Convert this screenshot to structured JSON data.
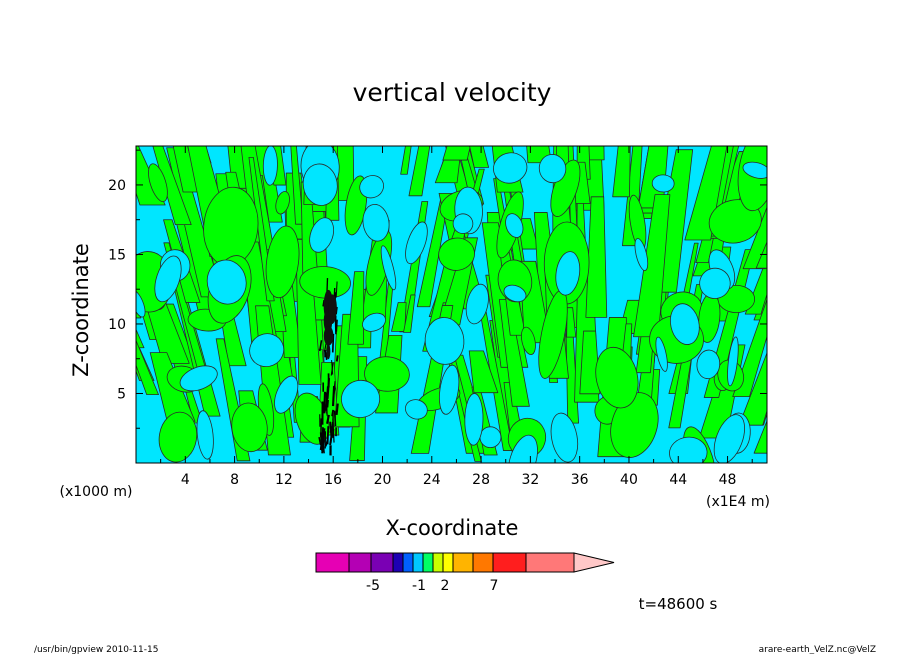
{
  "chart_data": {
    "type": "heatmap",
    "title": "vertical velocity",
    "xlabel": "X-coordinate",
    "ylabel": "Z-coordinate",
    "x_unit": "(x1E4 m)",
    "y_unit": "(x1000 m)",
    "xlim": [
      0,
      51.2
    ],
    "ylim": [
      0,
      22.8
    ],
    "x_ticks": [
      4,
      8,
      12,
      16,
      20,
      24,
      28,
      32,
      36,
      40,
      44,
      48
    ],
    "y_ticks": [
      5,
      10,
      15,
      20
    ],
    "grid": false,
    "colorbar": {
      "levels": [
        "-5",
        "-1",
        "2",
        "7"
      ],
      "colors": [
        "#e600b4",
        "#b400b4",
        "#7a00b4",
        "#1e00b4",
        "#0060ff",
        "#00c8ff",
        "#00ff64",
        "#c8ff00",
        "#ffff00",
        "#ffb400",
        "#ff7800",
        "#ff1e1e",
        "#ff7878"
      ],
      "extend_color": "#ffc8c8"
    },
    "dominant_colors": {
      "background": "#00e6ff",
      "positive": "#00ff00",
      "strong_core": "#000000"
    },
    "time_label": "t=48600 s"
  },
  "footer": {
    "left": "/usr/bin/gpview   2010-11-15",
    "right": "arare-earth_VelZ.nc@VelZ"
  }
}
